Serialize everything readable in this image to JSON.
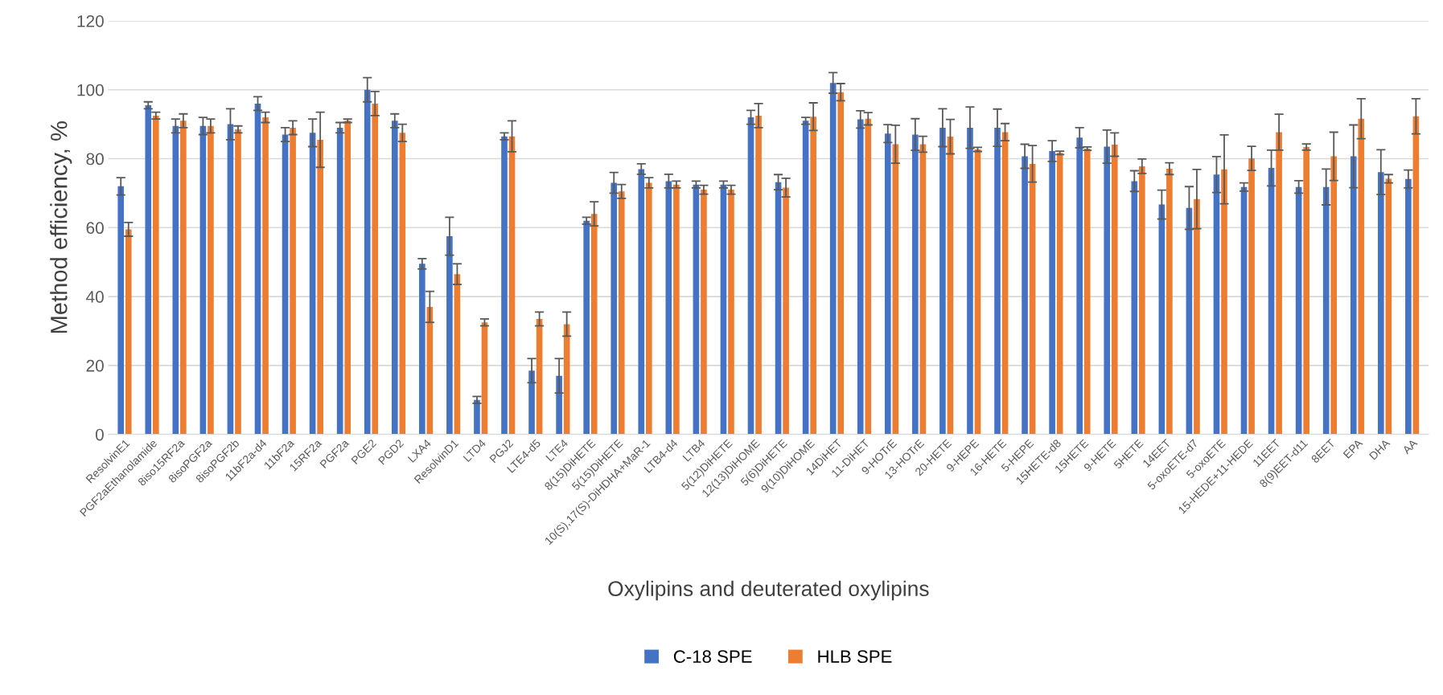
{
  "chart_data": {
    "type": "bar",
    "xlabel": "Oxylipins and deuterated oxylipins",
    "ylabel": "Method efficiency, %",
    "categories": [
      "ResolvinE1",
      "PGF2aEthanolamide",
      "8iso15RF2a",
      "8isoPGF2a",
      "8isoPGF2b",
      "11bF2a-d4",
      "11bF2a",
      "15RF2a",
      "PGF2a",
      "PGE2",
      "PGD2",
      "LXA4",
      "ResolvinD1",
      "LTD4",
      "PGJ2",
      "LTE4-d5",
      "LTE4",
      "8(15)DiHETE",
      "5(15)DiHETE",
      "10(S),17(S)-DiHDHA+MaR-1",
      "LTB4-d4",
      "LTB4",
      "5(12)DiHETE",
      "12(13)DiHOME",
      "5(6)DiHETE",
      "9(10)DiHOME",
      "14DiHET",
      "11-DiHET",
      "9-HOTrE",
      "13-HOTrE",
      "20-HETE",
      "9-HEPE",
      "16-HETE",
      "5-HEPE",
      "15HETE-d8",
      "15HETE",
      "9-HETE",
      "5HETE",
      "14EET",
      "5-oxoETE-d7",
      "5-oxoETE",
      "15-HEDE+11-HEDE",
      "11EET",
      "8(9)EET-d11",
      "8EET",
      "EPA",
      "DHA",
      "AA"
    ],
    "series": [
      {
        "name": "C-18 SPE",
        "color": "#4472c4",
        "values": [
          72,
          95.5,
          89.5,
          89.5,
          90,
          96,
          87,
          87.5,
          89,
          100,
          91,
          49.5,
          57.5,
          10,
          86.5,
          18.5,
          17,
          62,
          73,
          77,
          73.5,
          72.5,
          72.5,
          92,
          73.2,
          91,
          102,
          91.4,
          87.3,
          87,
          89,
          89,
          89,
          80.7,
          82.2,
          86.1,
          83.5,
          73.5,
          66.7,
          65.7,
          75.4,
          71.8,
          77.3,
          71.8,
          71.8,
          80.7,
          76.1,
          74.1
        ],
        "errors": [
          2.5,
          1,
          2,
          2.5,
          4.5,
          2,
          2,
          4,
          1.5,
          3.5,
          2,
          1.5,
          5.5,
          1,
          1,
          3.5,
          5,
          1,
          3,
          1.5,
          2,
          1,
          1,
          2,
          2.2,
          1,
          3,
          2.5,
          2.6,
          4.6,
          5.5,
          6,
          5.4,
          3.5,
          3,
          2.9,
          4.8,
          3,
          4.2,
          6.2,
          5.2,
          1.2,
          5.2,
          1.8,
          5.2,
          9.1,
          6.5,
          2.6
        ]
      },
      {
        "name": "HLB SPE",
        "color": "#ed7d31",
        "values": [
          59.5,
          92.5,
          91,
          89.5,
          88.5,
          92,
          89,
          85.5,
          91,
          96,
          87.5,
          37,
          46.5,
          32.5,
          86.5,
          33.5,
          32,
          64,
          70.5,
          73,
          72.5,
          71,
          71,
          92.5,
          71.6,
          92.2,
          99.3,
          91.6,
          84.2,
          84.2,
          86.4,
          82.7,
          87.7,
          78.5,
          81.7,
          82.9,
          84.1,
          77.8,
          77.1,
          68.3,
          76.9,
          80.1,
          87.7,
          83.4,
          80.7,
          91.6,
          74.2,
          92.3
        ],
        "errors": [
          2,
          1,
          2,
          2,
          1,
          1.5,
          2,
          8,
          0.5,
          3.5,
          2.5,
          4.5,
          3,
          1,
          4.5,
          2,
          3.5,
          3.5,
          2,
          1.5,
          1,
          1.3,
          1.3,
          3.5,
          2.7,
          4,
          2.5,
          1.8,
          5.5,
          2.3,
          5,
          0.6,
          2.5,
          5.3,
          0.5,
          0.5,
          3.4,
          2.1,
          1.7,
          8.6,
          10,
          3.5,
          5.2,
          0.9,
          7,
          5.8,
          1.2,
          5.1
        ]
      }
    ],
    "ylim": [
      0,
      120
    ],
    "yticks": [
      0,
      20,
      40,
      60,
      80,
      100,
      120
    ],
    "grid": "y",
    "legend": "bottom"
  }
}
